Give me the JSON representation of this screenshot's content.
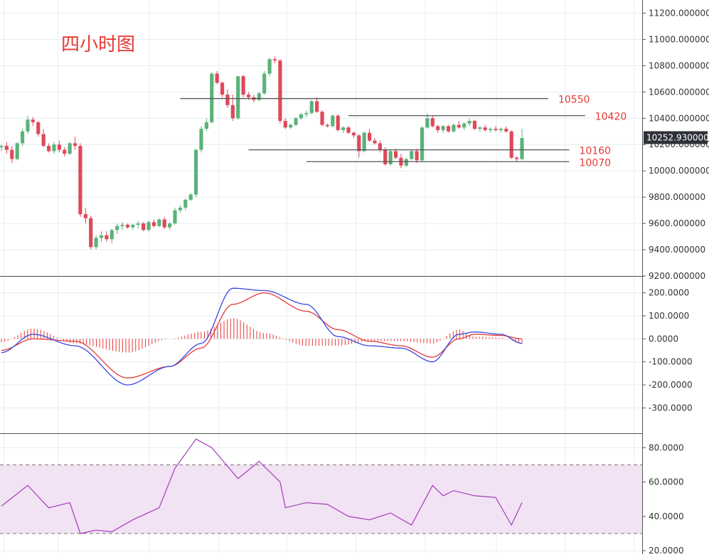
{
  "colors": {
    "up": "#5bb27a",
    "down": "#e0485a",
    "grid": "#e6ecf1",
    "axis": "#555555",
    "price_tag_bg": "#2e3138",
    "price_tag_text": "#ffffff",
    "level_line": "#555555",
    "level_text": "#e53935",
    "title_text": "#e53935",
    "macd_dif": "#3b46e0",
    "macd_dea": "#e53935",
    "macd_hist": "#e53935",
    "rsi_line": "#a23cb8",
    "rsi_band": "#f2e3f4",
    "rsi_band_edge": "#777777"
  },
  "chart_data": [
    {
      "type": "candlestick",
      "title": "四小时图",
      "ylim": [
        9200,
        11300
      ],
      "y_ticks": [
        "11200.000000",
        "11000.000000",
        "10800.000000",
        "10600.000000",
        "10400.000000",
        "10200.000000",
        "10000.000000",
        "9800.000000",
        "9600.000000",
        "9400.000000",
        "9200.000000"
      ],
      "current_price": "10252.930000",
      "levels": [
        {
          "label": "10550",
          "value": 10550,
          "x_from": 34,
          "x_to": 104
        },
        {
          "label": "10420",
          "value": 10420,
          "x_from": 66,
          "x_to": 111
        },
        {
          "label": "10160",
          "value": 10160,
          "x_from": 47,
          "x_to": 108
        },
        {
          "label": "10070",
          "value": 10070,
          "x_from": 58,
          "x_to": 108
        }
      ],
      "candles": [
        [
          10180,
          10200,
          10150,
          10190
        ],
        [
          10190,
          10220,
          10130,
          10160
        ],
        [
          10160,
          10190,
          10060,
          10090
        ],
        [
          10090,
          10220,
          10080,
          10210
        ],
        [
          10210,
          10320,
          10190,
          10300
        ],
        [
          10300,
          10420,
          10280,
          10390
        ],
        [
          10390,
          10410,
          10340,
          10370
        ],
        [
          10370,
          10380,
          10260,
          10280
        ],
        [
          10280,
          10320,
          10180,
          10190
        ],
        [
          10190,
          10210,
          10140,
          10150
        ],
        [
          10150,
          10220,
          10130,
          10200
        ],
        [
          10200,
          10230,
          10140,
          10160
        ],
        [
          10160,
          10180,
          10110,
          10130
        ],
        [
          10130,
          10220,
          10120,
          10210
        ],
        [
          10210,
          10260,
          10160,
          10190
        ],
        [
          10190,
          10210,
          9650,
          9670
        ],
        [
          9670,
          9720,
          9600,
          9640
        ],
        [
          9640,
          9660,
          9400,
          9420
        ],
        [
          9420,
          9510,
          9400,
          9490
        ],
        [
          9490,
          9540,
          9460,
          9510
        ],
        [
          9510,
          9540,
          9460,
          9480
        ],
        [
          9480,
          9560,
          9450,
          9550
        ],
        [
          9550,
          9600,
          9520,
          9580
        ],
        [
          9580,
          9610,
          9550,
          9590
        ],
        [
          9590,
          9600,
          9560,
          9570
        ],
        [
          9570,
          9600,
          9550,
          9590
        ],
        [
          9590,
          9620,
          9560,
          9600
        ],
        [
          9600,
          9610,
          9540,
          9550
        ],
        [
          9550,
          9620,
          9540,
          9610
        ],
        [
          9610,
          9630,
          9570,
          9580
        ],
        [
          9580,
          9640,
          9570,
          9630
        ],
        [
          9630,
          9650,
          9560,
          9570
        ],
        [
          9570,
          9610,
          9550,
          9600
        ],
        [
          9600,
          9720,
          9590,
          9700
        ],
        [
          9700,
          9740,
          9680,
          9720
        ],
        [
          9720,
          9790,
          9700,
          9780
        ],
        [
          9780,
          9830,
          9770,
          9820
        ],
        [
          9820,
          10170,
          9800,
          10160
        ],
        [
          10160,
          10340,
          10140,
          10320
        ],
        [
          10320,
          10400,
          10300,
          10370
        ],
        [
          10370,
          10750,
          10360,
          10740
        ],
        [
          10740,
          10760,
          10660,
          10670
        ],
        [
          10670,
          10680,
          10560,
          10580
        ],
        [
          10580,
          10620,
          10480,
          10500
        ],
        [
          10500,
          10580,
          10380,
          10400
        ],
        [
          10400,
          10720,
          10390,
          10720
        ],
        [
          10720,
          10730,
          10560,
          10580
        ],
        [
          10580,
          10600,
          10540,
          10560
        ],
        [
          10560,
          10580,
          10520,
          10540
        ],
        [
          10540,
          10600,
          10530,
          10590
        ],
        [
          10590,
          10760,
          10580,
          10740
        ],
        [
          10740,
          10860,
          10720,
          10850
        ],
        [
          10850,
          10870,
          10820,
          10840
        ],
        [
          10840,
          10850,
          10360,
          10380
        ],
        [
          10380,
          10400,
          10320,
          10330
        ],
        [
          10330,
          10360,
          10320,
          10350
        ],
        [
          10350,
          10410,
          10340,
          10400
        ],
        [
          10400,
          10440,
          10390,
          10430
        ],
        [
          10430,
          10460,
          10410,
          10440
        ],
        [
          10440,
          10540,
          10430,
          10530
        ],
        [
          10530,
          10560,
          10440,
          10450
        ],
        [
          10450,
          10460,
          10340,
          10350
        ],
        [
          10350,
          10360,
          10330,
          10340
        ],
        [
          10340,
          10430,
          10330,
          10420
        ],
        [
          10420,
          10430,
          10300,
          10310
        ],
        [
          10310,
          10340,
          10290,
          10330
        ],
        [
          10330,
          10340,
          10280,
          10290
        ],
        [
          10290,
          10300,
          10250,
          10270
        ],
        [
          10270,
          10280,
          10100,
          10150
        ],
        [
          10150,
          10300,
          10140,
          10290
        ],
        [
          10290,
          10320,
          10220,
          10230
        ],
        [
          10230,
          10250,
          10200,
          10210
        ],
        [
          10210,
          10230,
          10140,
          10160
        ],
        [
          10160,
          10180,
          10040,
          10050
        ],
        [
          10050,
          10160,
          10040,
          10150
        ],
        [
          10150,
          10170,
          10090,
          10100
        ],
        [
          10100,
          10130,
          10020,
          10040
        ],
        [
          10040,
          10100,
          10030,
          10090
        ],
        [
          10090,
          10160,
          10080,
          10150
        ],
        [
          10150,
          10170,
          10060,
          10080
        ],
        [
          10080,
          10340,
          10070,
          10330
        ],
        [
          10330,
          10440,
          10320,
          10400
        ],
        [
          10400,
          10420,
          10330,
          10340
        ],
        [
          10340,
          10350,
          10290,
          10310
        ],
        [
          10310,
          10350,
          10290,
          10340
        ],
        [
          10340,
          10350,
          10290,
          10300
        ],
        [
          10300,
          10360,
          10290,
          10350
        ],
        [
          10350,
          10380,
          10320,
          10330
        ],
        [
          10330,
          10370,
          10310,
          10360
        ],
        [
          10360,
          10400,
          10340,
          10380
        ],
        [
          10380,
          10390,
          10310,
          10320
        ],
        [
          10320,
          10340,
          10300,
          10330
        ],
        [
          10330,
          10350,
          10300,
          10310
        ],
        [
          10310,
          10330,
          10290,
          10320
        ],
        [
          10320,
          10340,
          10300,
          10310
        ],
        [
          10310,
          10330,
          10290,
          10320
        ],
        [
          10320,
          10340,
          10290,
          10300
        ],
        [
          10300,
          10310,
          10090,
          10100
        ],
        [
          10100,
          10110,
          10070,
          10090
        ],
        [
          10090,
          10320,
          10080,
          10250
        ]
      ]
    },
    {
      "type": "line",
      "indicator": "MACD",
      "ylim": [
        -410,
        270
      ],
      "y_ticks": [
        "200.0000",
        "100.0000",
        "0.0000",
        "-100.0000",
        "-200.0000",
        "-300.0000"
      ],
      "x": [
        0,
        6,
        14,
        24,
        32,
        38,
        44,
        50,
        58,
        64,
        70,
        76,
        82,
        87,
        90,
        95,
        99
      ],
      "series": [
        {
          "role": "dif",
          "values": [
            -60,
            20,
            -30,
            -200,
            -120,
            -20,
            220,
            210,
            150,
            10,
            -30,
            -40,
            -100,
            20,
            30,
            20,
            -20
          ]
        },
        {
          "role": "dea",
          "values": [
            -50,
            0,
            -10,
            -170,
            -120,
            -40,
            150,
            200,
            120,
            40,
            -10,
            -30,
            -80,
            0,
            20,
            15,
            0
          ]
        },
        {
          "role": "histogram",
          "values": [
            -15,
            45,
            -20,
            -60,
            0,
            30,
            90,
            25,
            -30,
            -30,
            -10,
            -10,
            -20,
            40,
            10,
            5,
            -20
          ]
        }
      ]
    },
    {
      "type": "line",
      "indicator": "RSI",
      "ylim": [
        18,
        88
      ],
      "y_ticks": [
        "80.0000",
        "60.0000",
        "40.0000",
        "20.0000"
      ],
      "band": [
        30,
        70
      ],
      "x": [
        0,
        5,
        9,
        13,
        15,
        18,
        21,
        25,
        30,
        33,
        37,
        40,
        45,
        49,
        53,
        54,
        58,
        62,
        66,
        70,
        74,
        78,
        82,
        84,
        86,
        90,
        94,
        97,
        99
      ],
      "values": [
        46,
        58,
        45,
        48,
        30,
        32,
        31,
        38,
        45,
        68,
        85,
        80,
        62,
        72,
        60,
        45,
        48,
        47,
        40,
        38,
        42,
        35,
        58,
        52,
        55,
        52,
        51,
        35,
        48
      ]
    }
  ]
}
